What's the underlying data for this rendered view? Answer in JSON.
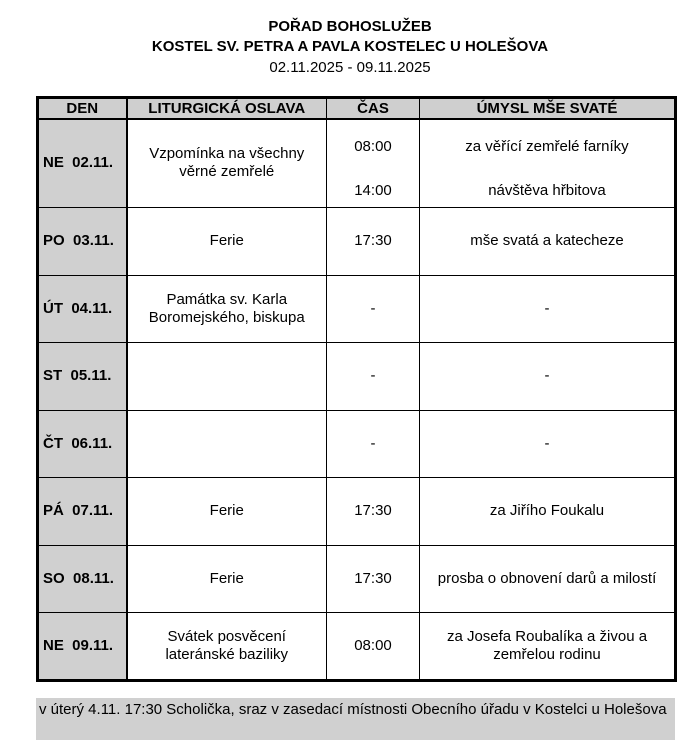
{
  "title": "POŘAD BOHOSLUŽEB",
  "church": "KOSTEL SV. PETRA A PAVLA KOSTELEC U HOLEŠOVA",
  "date_range": "02.11.2025 - 09.11.2025",
  "columns": [
    "DEN",
    "LITURGICKÁ OSLAVA",
    "ČAS",
    "ÚMYSL MŠE SVATÉ"
  ],
  "rows": [
    {
      "day": "NE  02.11.",
      "celebration": "Vzpomínka na všechny věrné zemřelé",
      "times": [
        "08:00",
        "14:00"
      ],
      "intentions": [
        "za věřící zemřelé farníky",
        "návštěva hřbitova"
      ]
    },
    {
      "day": "PO  03.11.",
      "celebration": "Ferie",
      "times": [
        "17:30"
      ],
      "intentions": [
        "mše svatá a katecheze"
      ]
    },
    {
      "day": "ÚT  04.11.",
      "celebration": "Památka sv. Karla Boromejského, biskupa",
      "times": [
        "-"
      ],
      "intentions": [
        "-"
      ]
    },
    {
      "day": "ST  05.11.",
      "celebration": "",
      "times": [
        "-"
      ],
      "intentions": [
        "-"
      ]
    },
    {
      "day": "ČT  06.11.",
      "celebration": "",
      "times": [
        "-"
      ],
      "intentions": [
        "-"
      ]
    },
    {
      "day": "PÁ  07.11.",
      "celebration": "Ferie",
      "times": [
        "17:30"
      ],
      "intentions": [
        "za Jiřího Foukalu"
      ]
    },
    {
      "day": "SO  08.11.",
      "celebration": "Ferie",
      "times": [
        "17:30"
      ],
      "intentions": [
        "prosba o obnovení darů a milostí"
      ]
    },
    {
      "day": "NE  09.11.",
      "celebration": "Svátek posvěcení lateránské baziliky",
      "times": [
        "08:00"
      ],
      "intentions": [
        "za Josefa Roubalíka a živou a zemřelou rodinu"
      ]
    }
  ],
  "note": "v úterý 4.11. 17:30 Scholička, sraz v zasedací místnosti Obecního úřadu v Kostelci u Holešova"
}
